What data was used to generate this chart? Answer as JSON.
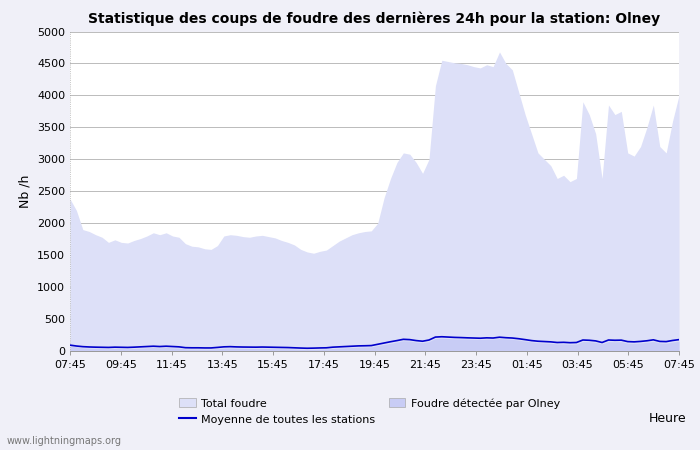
{
  "title": "Statistique des coups de foudre des dernières 24h pour la station: Olney",
  "xlabel": "Heure",
  "ylabel": "Nb /h",
  "ylim": [
    0,
    5000
  ],
  "yticks": [
    0,
    500,
    1000,
    1500,
    2000,
    2500,
    3000,
    3500,
    4000,
    4500,
    5000
  ],
  "xtick_labels": [
    "07:45",
    "09:45",
    "11:45",
    "13:45",
    "15:45",
    "17:45",
    "19:45",
    "21:45",
    "23:45",
    "01:45",
    "03:45",
    "05:45",
    "07:45"
  ],
  "background_color": "#f0f0f8",
  "plot_bg_color": "#ffffff",
  "grid_color": "#bbbbbb",
  "fill_total_color": "#dde0f8",
  "fill_olney_color": "#c8ccf5",
  "line_mean_color": "#0000cc",
  "watermark": "www.lightningmaps.org",
  "total_foudre": [
    2380,
    2200,
    1900,
    1870,
    1820,
    1780,
    1700,
    1740,
    1700,
    1690,
    1730,
    1760,
    1800,
    1850,
    1820,
    1850,
    1800,
    1780,
    1680,
    1640,
    1630,
    1600,
    1590,
    1650,
    1800,
    1820,
    1810,
    1790,
    1780,
    1800,
    1810,
    1790,
    1770,
    1730,
    1700,
    1660,
    1590,
    1550,
    1530,
    1560,
    1580,
    1650,
    1720,
    1770,
    1820,
    1850,
    1870,
    1880,
    2000,
    2400,
    2700,
    2950,
    3100,
    3080,
    2950,
    2780,
    3000,
    4150,
    4550,
    4530,
    4510,
    4500,
    4480,
    4450,
    4430,
    4480,
    4450,
    4680,
    4500,
    4400,
    4050,
    3700,
    3400,
    3100,
    3000,
    2900,
    2700,
    2750,
    2650,
    2700,
    3900,
    3700,
    3400,
    2700,
    3850,
    3700,
    3750,
    3100,
    3050,
    3200,
    3500,
    3850,
    3200,
    3100,
    3600,
    4000
  ],
  "olney_foudre": [
    80,
    65,
    50,
    45,
    42,
    38,
    36,
    40,
    38,
    36,
    40,
    45,
    50,
    55,
    50,
    55,
    50,
    46,
    32,
    30,
    30,
    28,
    28,
    35,
    45,
    48,
    44,
    42,
    41,
    40,
    42,
    40,
    38,
    36,
    34,
    30,
    26,
    23,
    25,
    28,
    30,
    40,
    45,
    50,
    55,
    60,
    62,
    65,
    85,
    100,
    120,
    140,
    160,
    155,
    140,
    130,
    148,
    195,
    200,
    195,
    190,
    188,
    185,
    182,
    180,
    185,
    183,
    195,
    188,
    182,
    170,
    155,
    142,
    130,
    125,
    120,
    110,
    112,
    106,
    110,
    148,
    145,
    135,
    110,
    148,
    143,
    146,
    122,
    118,
    126,
    136,
    150,
    126,
    120,
    140,
    152
  ],
  "mean_foudre": [
    92,
    78,
    68,
    63,
    60,
    58,
    56,
    60,
    58,
    56,
    60,
    65,
    70,
    75,
    70,
    75,
    70,
    65,
    52,
    50,
    50,
    48,
    48,
    56,
    65,
    68,
    64,
    62,
    61,
    60,
    62,
    60,
    58,
    56,
    54,
    50,
    46,
    43,
    45,
    48,
    50,
    60,
    65,
    70,
    75,
    80,
    82,
    85,
    105,
    125,
    145,
    163,
    183,
    178,
    163,
    153,
    172,
    218,
    223,
    218,
    213,
    210,
    206,
    203,
    200,
    206,
    203,
    216,
    208,
    203,
    192,
    178,
    163,
    153,
    148,
    143,
    133,
    136,
    130,
    133,
    172,
    168,
    158,
    133,
    172,
    168,
    170,
    147,
    143,
    150,
    160,
    175,
    150,
    147,
    165,
    178
  ]
}
